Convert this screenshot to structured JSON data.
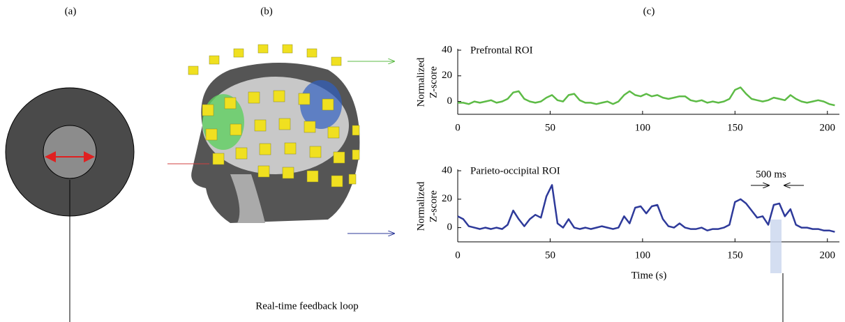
{
  "panel_labels": [
    "(a)",
    "(b)",
    "(c)"
  ],
  "caption": "Real-time feedback loop",
  "chart_data": [
    {
      "type": "line",
      "title": "Prefrontal ROI",
      "ylabel": [
        "Normalized",
        "Z-score"
      ],
      "xlim": [
        0,
        205
      ],
      "xticks": [
        0,
        50,
        100,
        150,
        200
      ],
      "ylim": [
        -10,
        40
      ],
      "yticks": [
        0,
        20,
        40
      ],
      "x": [
        0,
        3,
        6,
        9,
        12,
        15,
        18,
        21,
        24,
        27,
        30,
        33,
        36,
        39,
        42,
        45,
        48,
        51,
        54,
        57,
        60,
        63,
        66,
        69,
        72,
        75,
        78,
        81,
        84,
        87,
        90,
        93,
        96,
        99,
        102,
        105,
        108,
        111,
        114,
        117,
        120,
        123,
        126,
        129,
        132,
        135,
        138,
        141,
        144,
        147,
        150,
        153,
        156,
        159,
        162,
        165,
        168,
        171,
        174,
        177,
        180,
        183,
        186,
        189,
        192,
        195,
        198,
        201,
        204
      ],
      "series": [
        {
          "name": "Prefrontal ROI",
          "color": "#5dbb46",
          "values": [
            -1,
            -1,
            -2,
            0,
            -1,
            0,
            1,
            -1,
            0,
            2,
            7,
            8,
            2,
            0,
            -1,
            0,
            3,
            5,
            1,
            0,
            5,
            6,
            1,
            -1,
            -1,
            -2,
            -1,
            0,
            -2,
            0,
            5,
            8,
            5,
            4,
            6,
            4,
            5,
            3,
            2,
            3,
            4,
            4,
            1,
            0,
            1,
            -1,
            0,
            -1,
            0,
            2,
            9,
            11,
            6,
            2,
            1,
            0,
            1,
            3,
            2,
            1,
            5,
            2,
            0,
            -1,
            0,
            1,
            0,
            -2,
            -3
          ]
        }
      ]
    },
    {
      "type": "line",
      "title": "Parieto-occipital ROI",
      "ylabel": [
        "Normalized",
        "Z-score"
      ],
      "xlabel": "Time (s)",
      "annotation": "500 ms",
      "xlim": [
        0,
        205
      ],
      "xticks": [
        0,
        50,
        100,
        150,
        200
      ],
      "ylim": [
        -10,
        40
      ],
      "yticks": [
        0,
        20,
        40
      ],
      "x": [
        0,
        3,
        6,
        9,
        12,
        15,
        18,
        21,
        24,
        27,
        30,
        33,
        36,
        39,
        42,
        45,
        48,
        51,
        54,
        57,
        60,
        63,
        66,
        69,
        72,
        75,
        78,
        81,
        84,
        87,
        90,
        93,
        96,
        99,
        102,
        105,
        108,
        111,
        114,
        117,
        120,
        123,
        126,
        129,
        132,
        135,
        138,
        141,
        144,
        147,
        150,
        153,
        156,
        159,
        162,
        165,
        168,
        171,
        174,
        177,
        180,
        183,
        186,
        189,
        192,
        195,
        198,
        201,
        204
      ],
      "series": [
        {
          "name": "Parieto-occipital ROI",
          "color": "#2e3a9a",
          "values": [
            8,
            6,
            1,
            0,
            -1,
            0,
            -1,
            0,
            -1,
            2,
            12,
            6,
            1,
            6,
            9,
            7,
            22,
            30,
            3,
            0,
            6,
            0,
            -1,
            0,
            -1,
            0,
            1,
            0,
            -1,
            0,
            8,
            3,
            14,
            15,
            10,
            15,
            16,
            6,
            1,
            0,
            3,
            0,
            -1,
            -1,
            0,
            -2,
            -1,
            -1,
            0,
            2,
            18,
            20,
            17,
            12,
            7,
            8,
            2,
            16,
            17,
            8,
            13,
            2,
            0,
            0,
            -1,
            -1,
            -2,
            -2,
            -3
          ]
        }
      ]
    }
  ]
}
